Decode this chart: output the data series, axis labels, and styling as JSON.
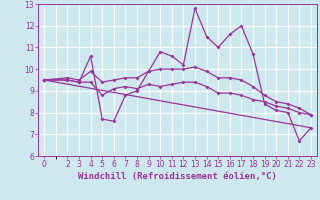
{
  "xlabel": "Windchill (Refroidissement éolien,°C)",
  "background_color": "#cde8ee",
  "line_color": "#993399",
  "grid_color": "#ffffff",
  "xlim": [
    -0.5,
    23.5
  ],
  "ylim": [
    6,
    13
  ],
  "xticks": [
    0,
    2,
    3,
    4,
    5,
    6,
    7,
    8,
    9,
    10,
    11,
    12,
    13,
    14,
    15,
    16,
    17,
    18,
    19,
    20,
    21,
    22,
    23
  ],
  "yticks": [
    6,
    7,
    8,
    9,
    10,
    11,
    12,
    13
  ],
  "line1_x": [
    0,
    2,
    3,
    4,
    5,
    6,
    7,
    8,
    9,
    10,
    11,
    12,
    13,
    14,
    15,
    16,
    17,
    18,
    19,
    20,
    21,
    22,
    23
  ],
  "line1_y": [
    9.5,
    9.5,
    9.4,
    10.6,
    7.7,
    7.6,
    8.8,
    9.0,
    9.9,
    10.8,
    10.6,
    10.2,
    12.8,
    11.5,
    11.0,
    11.6,
    12.0,
    10.7,
    8.4,
    8.1,
    8.0,
    6.7,
    7.3
  ],
  "line2_x": [
    0,
    2,
    3,
    4,
    5,
    6,
    7,
    8,
    9,
    10,
    11,
    12,
    13,
    14,
    15,
    16,
    17,
    18,
    19,
    20,
    21,
    22,
    23
  ],
  "line2_y": [
    9.5,
    9.5,
    9.4,
    9.4,
    8.8,
    9.1,
    9.2,
    9.1,
    9.3,
    9.2,
    9.3,
    9.4,
    9.4,
    9.2,
    8.9,
    8.9,
    8.8,
    8.6,
    8.5,
    8.3,
    8.2,
    8.0,
    7.9
  ],
  "line3_x": [
    0,
    2,
    3,
    4,
    5,
    6,
    7,
    8,
    9,
    10,
    11,
    12,
    13,
    14,
    15,
    16,
    17,
    18,
    19,
    20,
    21,
    22,
    23
  ],
  "line3_y": [
    9.5,
    9.6,
    9.5,
    9.9,
    9.4,
    9.5,
    9.6,
    9.6,
    9.9,
    10.0,
    10.0,
    10.0,
    10.1,
    9.9,
    9.6,
    9.6,
    9.5,
    9.2,
    8.8,
    8.5,
    8.4,
    8.2,
    7.9
  ],
  "line4_x": [
    0,
    23
  ],
  "line4_y": [
    9.5,
    7.3
  ],
  "marker": "D",
  "marker_size": 2,
  "linewidth": 0.9,
  "tick_fontsize": 5.5,
  "xlabel_fontsize": 6.5
}
